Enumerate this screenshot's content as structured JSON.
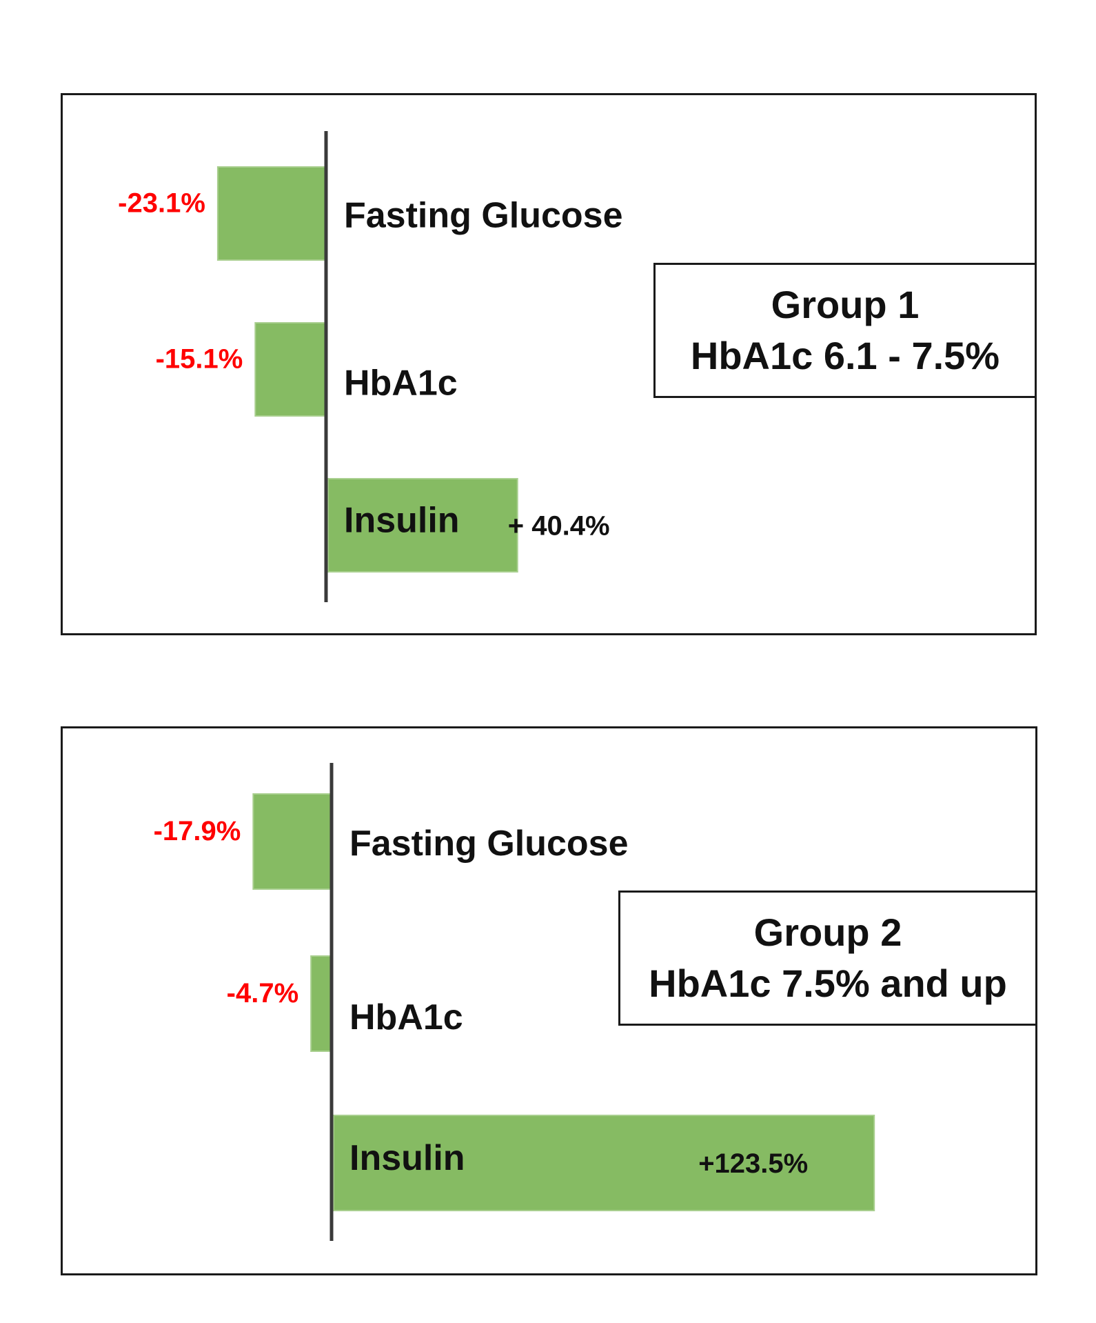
{
  "chart_data": [
    {
      "type": "bar",
      "orientation": "horizontal",
      "group_label": "Group 1",
      "group_range": "HbA1c 6.1 - 7.5%",
      "categories": [
        "Fasting Glucose",
        "HbA1c",
        "Insulin"
      ],
      "values": [
        -23.1,
        -15.1,
        40.4
      ],
      "value_labels": [
        "-23.1%",
        "-15.1%",
        "+ 40.4%"
      ],
      "colors": {
        "bar": "#86bb63",
        "negative_label": "#ff0000",
        "positive_label": "#111111"
      },
      "xlim": [
        -29,
        55
      ],
      "grid": false
    },
    {
      "type": "bar",
      "orientation": "horizontal",
      "group_label": "Group 2",
      "group_range": "HbA1c 7.5% and up",
      "categories": [
        "Fasting Glucose",
        "HbA1c",
        "Insulin"
      ],
      "values": [
        -17.9,
        -4.7,
        123.5
      ],
      "value_labels": [
        "-17.9%",
        "-4.7%",
        "+123.5%"
      ],
      "colors": {
        "bar": "#86bb63",
        "negative_label": "#ff0000",
        "positive_label": "#111111"
      },
      "xlim": [
        -44,
        130
      ],
      "grid": false
    }
  ]
}
